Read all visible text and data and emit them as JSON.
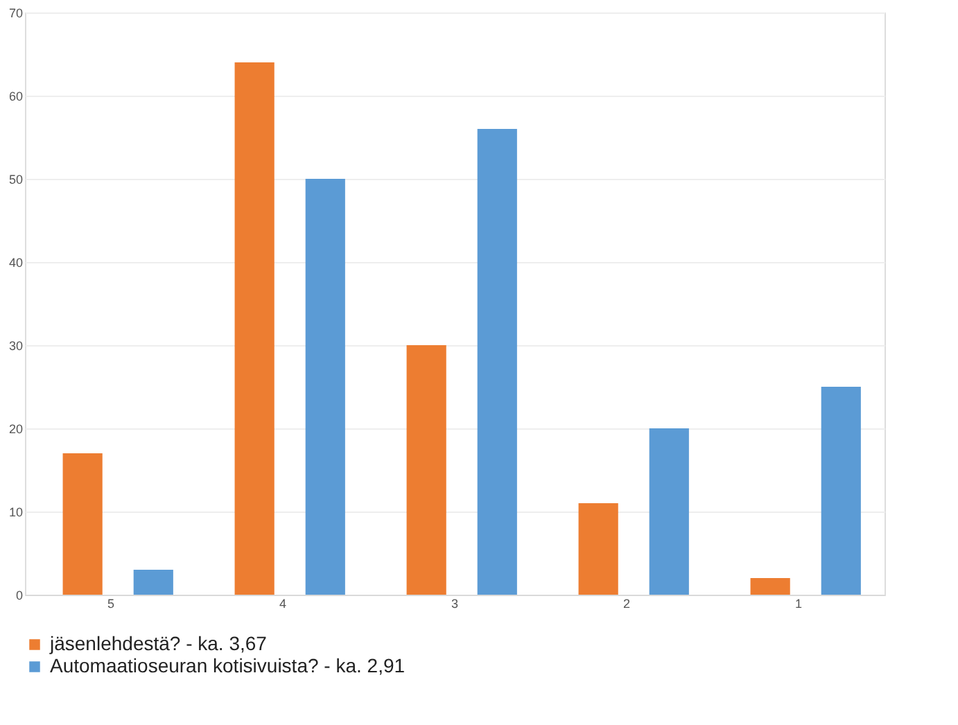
{
  "chart_data": {
    "type": "bar",
    "categories": [
      "5",
      "4",
      "3",
      "2",
      "1"
    ],
    "series": [
      {
        "name": "jäsenlehdestä? - ka. 3,67",
        "color": "#ed7d31",
        "values": [
          17,
          64,
          30,
          11,
          2
        ]
      },
      {
        "name": "Automaatioseuran kotisivuista? - ka. 2,91",
        "color": "#5b9bd5",
        "values": [
          3,
          50,
          56,
          20,
          25
        ]
      }
    ],
    "ylim": [
      0,
      70
    ],
    "yticks": [
      0,
      10,
      20,
      30,
      40,
      50,
      60,
      70
    ],
    "grid": "y",
    "legend": "bottom"
  }
}
